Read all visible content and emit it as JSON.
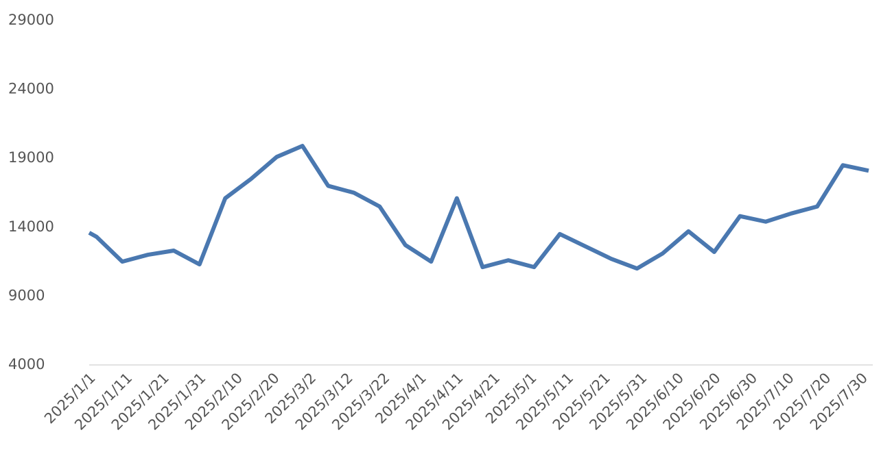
{
  "chart_data": {
    "type": "line",
    "x": [
      "2025/1/1",
      "2025/1/3",
      "2025/1/10",
      "2025/1/17",
      "2025/1/24",
      "2025/1/31",
      "2025/2/7",
      "2025/2/14",
      "2025/2/21",
      "2025/2/28",
      "2025/3/7",
      "2025/3/14",
      "2025/3/21",
      "2025/3/28",
      "2025/4/4",
      "2025/4/11",
      "2025/4/18",
      "2025/4/25",
      "2025/5/2",
      "2025/5/9",
      "2025/5/16",
      "2025/5/23",
      "2025/5/30",
      "2025/6/6",
      "2025/6/13",
      "2025/6/20",
      "2025/6/27",
      "2025/7/4",
      "2025/7/11",
      "2025/7/18",
      "2025/7/25",
      "2025/8/1"
    ],
    "series": [
      {
        "color": "#4a78b0",
        "values": [
          13600,
          13300,
          11500,
          12000,
          12300,
          11300,
          16100,
          17500,
          19100,
          19900,
          17000,
          16500,
          15500,
          12700,
          11500,
          16100,
          11100,
          11600,
          11100,
          13500,
          12600,
          11700,
          11000,
          12100,
          13700,
          12200,
          14800,
          14400,
          15000,
          15500,
          18500,
          18100
        ]
      }
    ],
    "xlim": [
      "2025/1/1",
      "2025/8/1"
    ],
    "xticks": [
      "2025/1/1",
      "2025/1/11",
      "2025/1/21",
      "2025/1/31",
      "2025/2/10",
      "2025/2/20",
      "2025/3/2",
      "2025/3/12",
      "2025/3/22",
      "2025/4/1",
      "2025/4/11",
      "2025/4/21",
      "2025/5/1",
      "2025/5/11",
      "2025/5/21",
      "2025/5/31",
      "2025/6/10",
      "2025/6/20",
      "2025/6/30",
      "2025/7/10",
      "2025/7/20",
      "2025/7/30"
    ],
    "ylim": [
      4000,
      29000
    ],
    "yticks": [
      4000,
      9000,
      14000,
      19000,
      24000,
      29000
    ],
    "grid": false
  }
}
